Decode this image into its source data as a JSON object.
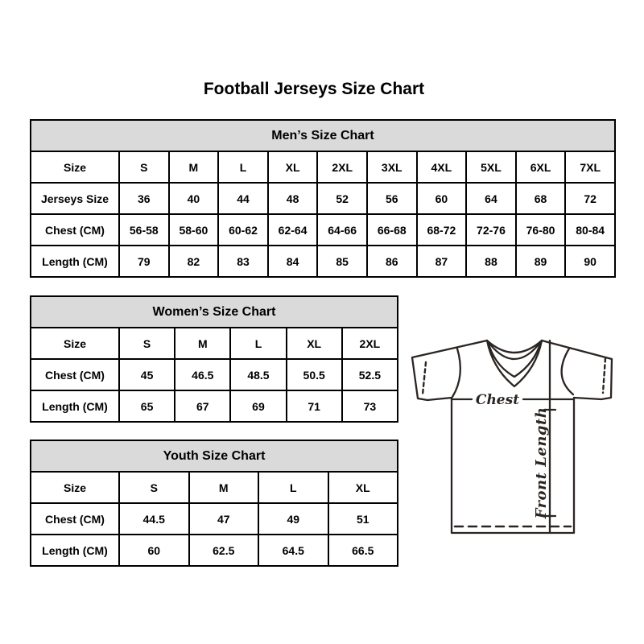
{
  "title": "Football Jerseys Size Chart",
  "tables": {
    "men": {
      "title": "Men’s Size Chart",
      "rows": [
        {
          "label": "Size",
          "values": [
            "S",
            "M",
            "L",
            "XL",
            "2XL",
            "3XL",
            "4XL",
            "5XL",
            "6XL",
            "7XL"
          ]
        },
        {
          "label": "Jerseys Size",
          "values": [
            "36",
            "40",
            "44",
            "48",
            "52",
            "56",
            "60",
            "64",
            "68",
            "72"
          ]
        },
        {
          "label": "Chest (CM)",
          "values": [
            "56-58",
            "58-60",
            "60-62",
            "62-64",
            "64-66",
            "66-68",
            "68-72",
            "72-76",
            "76-80",
            "80-84"
          ]
        },
        {
          "label": "Length (CM)",
          "values": [
            "79",
            "82",
            "83",
            "84",
            "85",
            "86",
            "87",
            "88",
            "89",
            "90"
          ]
        }
      ]
    },
    "women": {
      "title": "Women’s Size Chart",
      "rows": [
        {
          "label": "Size",
          "values": [
            "S",
            "M",
            "L",
            "XL",
            "2XL"
          ]
        },
        {
          "label": "Chest (CM)",
          "values": [
            "45",
            "46.5",
            "48.5",
            "50.5",
            "52.5"
          ]
        },
        {
          "label": "Length (CM)",
          "values": [
            "65",
            "67",
            "69",
            "71",
            "73"
          ]
        }
      ]
    },
    "youth": {
      "title": "Youth Size Chart",
      "rows": [
        {
          "label": "Size",
          "values": [
            "S",
            "M",
            "L",
            "XL"
          ]
        },
        {
          "label": "Chest (CM)",
          "values": [
            "44.5",
            "47",
            "49",
            "51"
          ]
        },
        {
          "label": "Length (CM)",
          "values": [
            "60",
            "62.5",
            "64.5",
            "66.5"
          ]
        }
      ]
    }
  },
  "diagram": {
    "chest_label": "Chest",
    "front_length_label": "Front Length"
  },
  "colors": {
    "table_header_bg": "#dadada",
    "table_border": "#000000",
    "diagram_ink": "#2b2522"
  }
}
